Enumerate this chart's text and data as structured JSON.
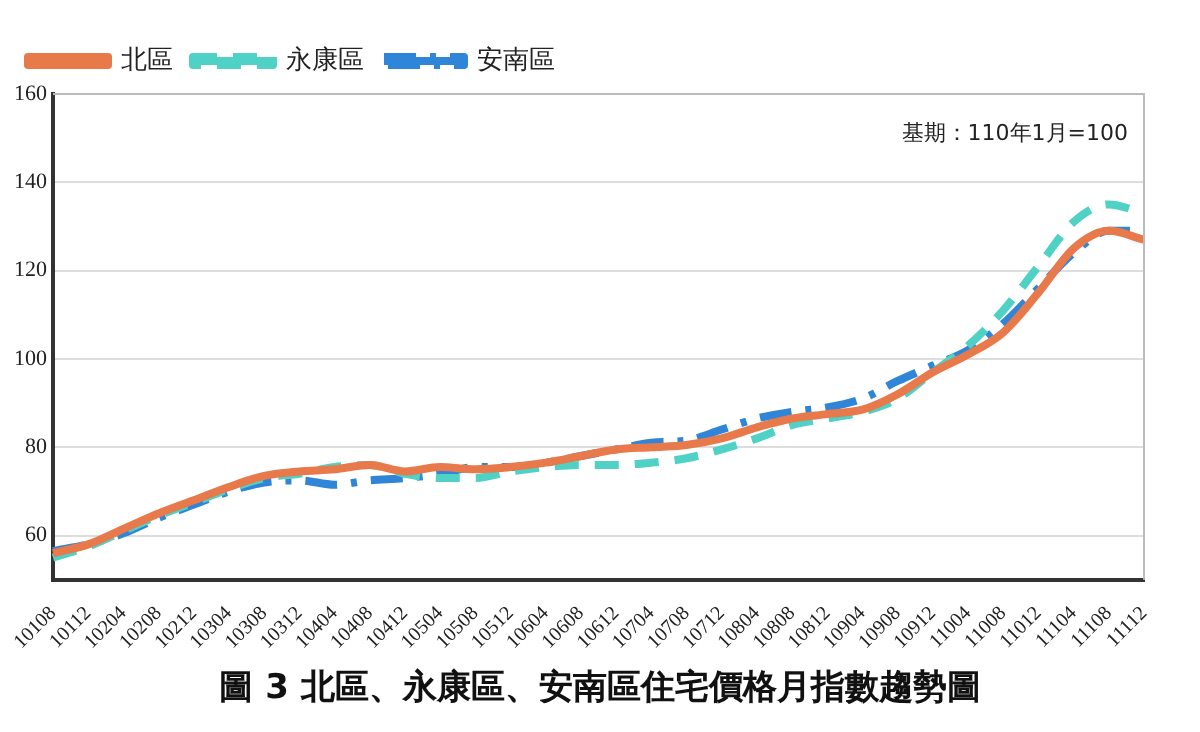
{
  "chart_data": {
    "type": "line",
    "title": "圖 3 北區、永康區、安南區住宅價格月指數趨勢圖",
    "annotations": [
      "基期：110年1月=100"
    ],
    "categories": [
      "10108",
      "10112",
      "10204",
      "10208",
      "10212",
      "10304",
      "10308",
      "10312",
      "10404",
      "10408",
      "10412",
      "10504",
      "10508",
      "10512",
      "10604",
      "10608",
      "10612",
      "10704",
      "10708",
      "10712",
      "10804",
      "10808",
      "10812",
      "10904",
      "10908",
      "10912",
      "11004",
      "11008",
      "11012",
      "11104",
      "11108",
      "11112"
    ],
    "series": [
      {
        "name": "北區",
        "color": "#e8794b",
        "line_style": "solid",
        "values": [
          56,
          58,
          61.5,
          65,
          68,
          71,
          73.5,
          74.5,
          75,
          76,
          74.5,
          75.5,
          75,
          75.5,
          76.5,
          78,
          79.5,
          80,
          80.5,
          82,
          84.5,
          86.5,
          87.5,
          88.5,
          92,
          97,
          101,
          106,
          115,
          125,
          129,
          127
        ]
      },
      {
        "name": "永康區",
        "color": "#4fd1c5",
        "line_style": "dashed",
        "values": [
          55,
          57.5,
          61,
          64.5,
          67.5,
          70.5,
          73,
          74,
          75.5,
          76,
          74,
          73,
          73,
          74.5,
          75.5,
          76,
          76,
          76.5,
          77.5,
          79.5,
          82,
          85,
          86.5,
          88,
          91,
          97,
          103,
          111,
          121,
          131,
          135,
          133
        ]
      },
      {
        "name": "安南區",
        "color": "#2f86d8",
        "line_style": "dashdot",
        "values": [
          56.5,
          58,
          60.5,
          64,
          67,
          70,
          72,
          72.5,
          71.5,
          72.5,
          73,
          74,
          75.5,
          75.5,
          76.5,
          78,
          79.5,
          81,
          81.5,
          84,
          86.5,
          88,
          89,
          91,
          95,
          98.5,
          102,
          108,
          116,
          124,
          129,
          129
        ]
      }
    ],
    "ylim": [
      50,
      160
    ],
    "yticks": [
      60,
      80,
      100,
      120,
      140,
      160
    ],
    "grid": "y",
    "legend": "top left",
    "marker": "none"
  }
}
